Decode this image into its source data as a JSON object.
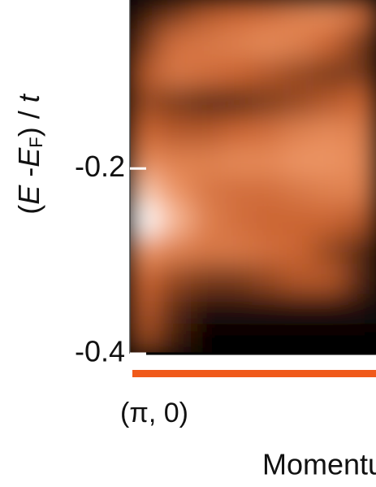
{
  "chart_data": {
    "type": "heatmap",
    "ylabel": [
      "(",
      "E",
      " -",
      "E",
      "F",
      ") / ",
      "t"
    ],
    "categories": [
      "(π, 0)"
    ],
    "xlabel": "Momentum",
    "ylim": [
      -0.4,
      -0.018
    ],
    "yticks": [
      -0.2,
      -0.4
    ],
    "colormap": [
      "#000000",
      "#c9622f",
      "#f5a070",
      "#ffffff"
    ],
    "path_color": "#f05a1a",
    "z": [
      [
        0.1,
        0.2,
        0.3,
        0.35,
        0.4,
        0.5,
        0.55,
        0.4
      ],
      [
        0.2,
        0.4,
        0.45,
        0.5,
        0.55,
        0.5,
        0.35,
        0.2
      ],
      [
        0.3,
        0.45,
        0.4,
        0.35,
        0.3,
        0.25,
        0.2,
        0.2
      ],
      [
        0.25,
        0.2,
        0.15,
        0.15,
        0.2,
        0.25,
        0.3,
        0.35
      ],
      [
        0.35,
        0.3,
        0.3,
        0.35,
        0.4,
        0.5,
        0.55,
        0.5
      ],
      [
        0.55,
        0.5,
        0.5,
        0.55,
        0.55,
        0.6,
        0.6,
        0.55
      ],
      [
        0.8,
        0.6,
        0.45,
        0.4,
        0.4,
        0.45,
        0.5,
        0.5
      ],
      [
        1.0,
        0.75,
        0.5,
        0.4,
        0.35,
        0.35,
        0.35,
        0.3
      ],
      [
        0.6,
        0.5,
        0.45,
        0.45,
        0.4,
        0.35,
        0.25,
        0.15
      ],
      [
        0.35,
        0.25,
        0.2,
        0.2,
        0.25,
        0.3,
        0.3,
        0.15
      ],
      [
        0.3,
        0.15,
        0.05,
        0.05,
        0.05,
        0.05,
        0.05,
        0.05
      ],
      [
        0.25,
        0.1,
        0,
        0,
        0,
        0,
        0,
        0
      ]
    ]
  }
}
